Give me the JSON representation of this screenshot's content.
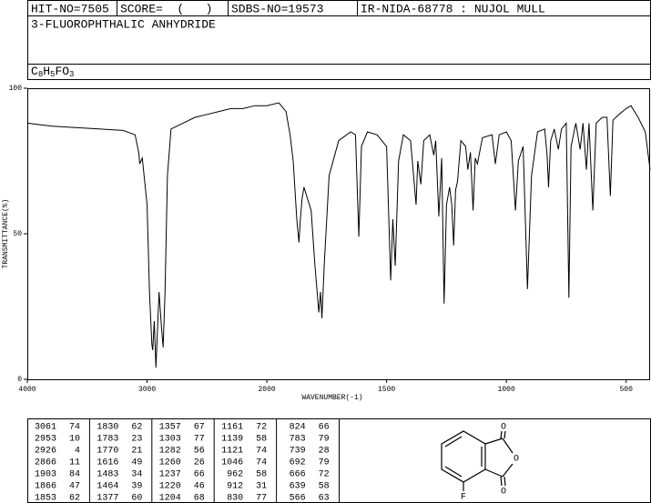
{
  "header": {
    "hit_no": "HIT-NO=7505",
    "score": "SCORE=  (   )",
    "sdbs_no": "SDBS-NO=19573",
    "method": "IR-NIDA-68778 : NUJOL MULL",
    "compound": "3-FLUOROPHTHALIC ANHYDRIDE",
    "formula": [
      "C",
      "8",
      "H",
      "5",
      "FO",
      "3"
    ]
  },
  "chart_data": {
    "type": "line",
    "xlabel": "WAVENUMBER(-1)",
    "ylabel": "TRANSMITTANCE(%)",
    "xlim": [
      4000,
      400
    ],
    "x_scale_break": 2000,
    "xticks": [
      4000,
      3000,
      2000,
      1500,
      1000,
      500
    ],
    "ylim": [
      0,
      100
    ],
    "yticks": [
      0,
      50,
      100
    ],
    "color": "#000000",
    "x": [
      4000,
      3800,
      3600,
      3400,
      3200,
      3100,
      3070,
      3061,
      3040,
      3000,
      2980,
      2960,
      2953,
      2940,
      2926,
      2915,
      2900,
      2880,
      2866,
      2850,
      2830,
      2800,
      2700,
      2600,
      2500,
      2400,
      2300,
      2200,
      2100,
      2000,
      1950,
      1920,
      1903,
      1890,
      1875,
      1866,
      1860,
      1853,
      1845,
      1830,
      1815,
      1800,
      1783,
      1776,
      1770,
      1760,
      1740,
      1700,
      1650,
      1630,
      1616,
      1605,
      1580,
      1540,
      1500,
      1483,
      1474,
      1464,
      1450,
      1430,
      1400,
      1377,
      1370,
      1357,
      1345,
      1320,
      1303,
      1295,
      1282,
      1270,
      1260,
      1250,
      1237,
      1228,
      1220,
      1212,
      1204,
      1190,
      1170,
      1161,
      1150,
      1139,
      1130,
      1121,
      1100,
      1060,
      1046,
      1030,
      1000,
      980,
      962,
      950,
      930,
      912,
      895,
      870,
      840,
      830,
      824,
      815,
      800,
      783,
      770,
      750,
      739,
      730,
      710,
      692,
      680,
      666,
      655,
      639,
      625,
      600,
      580,
      566,
      555,
      530,
      500,
      480,
      450,
      420,
      400
    ],
    "values": [
      88,
      87,
      86.5,
      86,
      85.5,
      84,
      78,
      74,
      76,
      60,
      30,
      12,
      10,
      20,
      4,
      15,
      30,
      18,
      11,
      30,
      70,
      86,
      88,
      90,
      91,
      92,
      93,
      93,
      94,
      94,
      95,
      92,
      84,
      75,
      55,
      47,
      55,
      62,
      66,
      62,
      58,
      40,
      23,
      30,
      21,
      40,
      70,
      82,
      85,
      84,
      49,
      80,
      85,
      84,
      80,
      34,
      55,
      39,
      75,
      84,
      82,
      60,
      75,
      67,
      82,
      84,
      77,
      82,
      56,
      76,
      26,
      60,
      66,
      60,
      46,
      65,
      68,
      82,
      80,
      72,
      78,
      58,
      76,
      74,
      83,
      84,
      74,
      84,
      85,
      82,
      58,
      75,
      80,
      31,
      70,
      85,
      86,
      77,
      66,
      82,
      86,
      79,
      86,
      88,
      28,
      80,
      88,
      79,
      88,
      72,
      88,
      58,
      88,
      90,
      90,
      63,
      89,
      91,
      93,
      94,
      90,
      85,
      72
    ]
  },
  "peak_table": [
    [
      [
        3061,
        74
      ],
      [
        2953,
        10
      ],
      [
        2926,
        4
      ],
      [
        2866,
        11
      ],
      [
        1903,
        84
      ],
      [
        1866,
        47
      ],
      [
        1853,
        62
      ]
    ],
    [
      [
        1830,
        62
      ],
      [
        1783,
        23
      ],
      [
        1770,
        21
      ],
      [
        1616,
        49
      ],
      [
        1483,
        34
      ],
      [
        1464,
        39
      ],
      [
        1377,
        60
      ]
    ],
    [
      [
        1357,
        67
      ],
      [
        1303,
        77
      ],
      [
        1282,
        56
      ],
      [
        1260,
        26
      ],
      [
        1237,
        66
      ],
      [
        1220,
        46
      ],
      [
        1204,
        68
      ]
    ],
    [
      [
        1161,
        72
      ],
      [
        1139,
        58
      ],
      [
        1121,
        74
      ],
      [
        1046,
        74
      ],
      [
        962,
        58
      ],
      [
        912,
        31
      ],
      [
        830,
        77
      ]
    ],
    [
      [
        824,
        66
      ],
      [
        783,
        79
      ],
      [
        739,
        28
      ],
      [
        692,
        79
      ],
      [
        666,
        72
      ],
      [
        639,
        58
      ],
      [
        566,
        63
      ]
    ]
  ],
  "structure": {
    "atoms": [
      "O",
      "O",
      "O",
      "F"
    ]
  }
}
